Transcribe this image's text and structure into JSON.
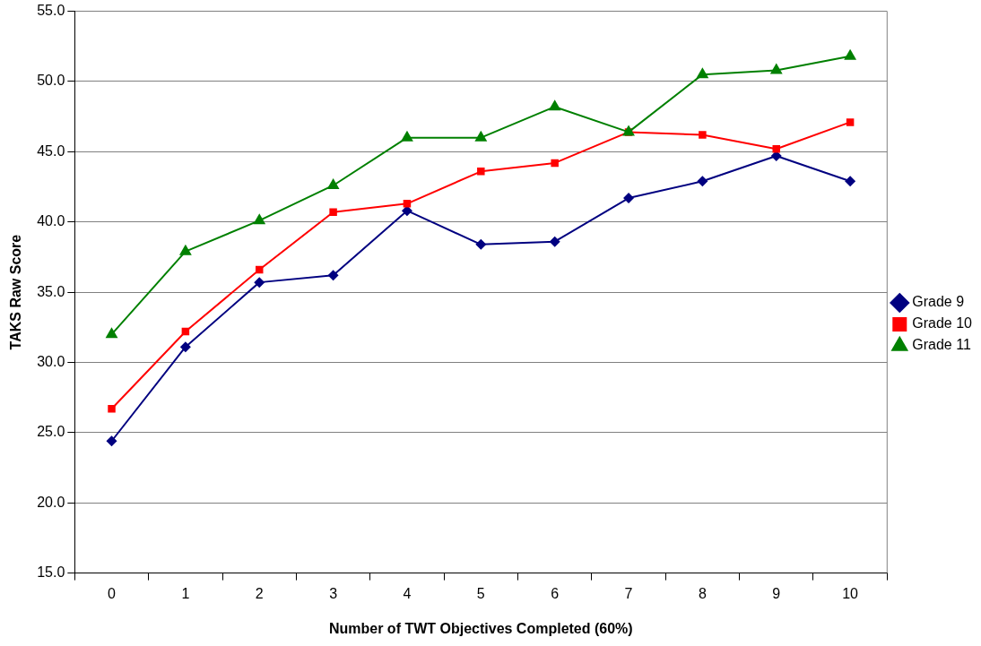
{
  "chart_data": {
    "type": "line",
    "xlabel": "Number of TWT Objectives Completed (60%)",
    "ylabel": "TAKS Raw Score",
    "categories": [
      "0",
      "1",
      "2",
      "3",
      "4",
      "5",
      "6",
      "7",
      "8",
      "9",
      "10"
    ],
    "series": [
      {
        "name": "Grade 9",
        "color": "#000080",
        "marker": "diamond",
        "values": [
          24.4,
          31.1,
          35.7,
          36.2,
          40.8,
          38.4,
          38.6,
          41.7,
          42.9,
          44.7,
          42.9
        ]
      },
      {
        "name": "Grade 10",
        "color": "#ff0000",
        "marker": "square",
        "values": [
          26.7,
          32.2,
          36.6,
          40.7,
          41.3,
          43.6,
          44.2,
          46.4,
          46.2,
          45.2,
          47.1
        ]
      },
      {
        "name": "Grade 11",
        "color": "#008000",
        "marker": "triangle",
        "values": [
          32.0,
          37.9,
          40.1,
          42.6,
          46.0,
          46.0,
          48.2,
          46.4,
          50.5,
          50.8,
          51.8
        ]
      }
    ],
    "ylim": [
      15,
      55
    ],
    "yticks": [
      {
        "value": 15,
        "label": "15.0"
      },
      {
        "value": 20,
        "label": "20.0"
      },
      {
        "value": 25,
        "label": "25.0"
      },
      {
        "value": 30,
        "label": "30.0"
      },
      {
        "value": 35,
        "label": "35.0"
      },
      {
        "value": 40,
        "label": "40.0"
      },
      {
        "value": 45,
        "label": "45.0"
      },
      {
        "value": 50,
        "label": "50.0"
      },
      {
        "value": 55,
        "label": "55.0"
      }
    ],
    "grid": "y",
    "legend": "right",
    "line_style": "solid"
  }
}
